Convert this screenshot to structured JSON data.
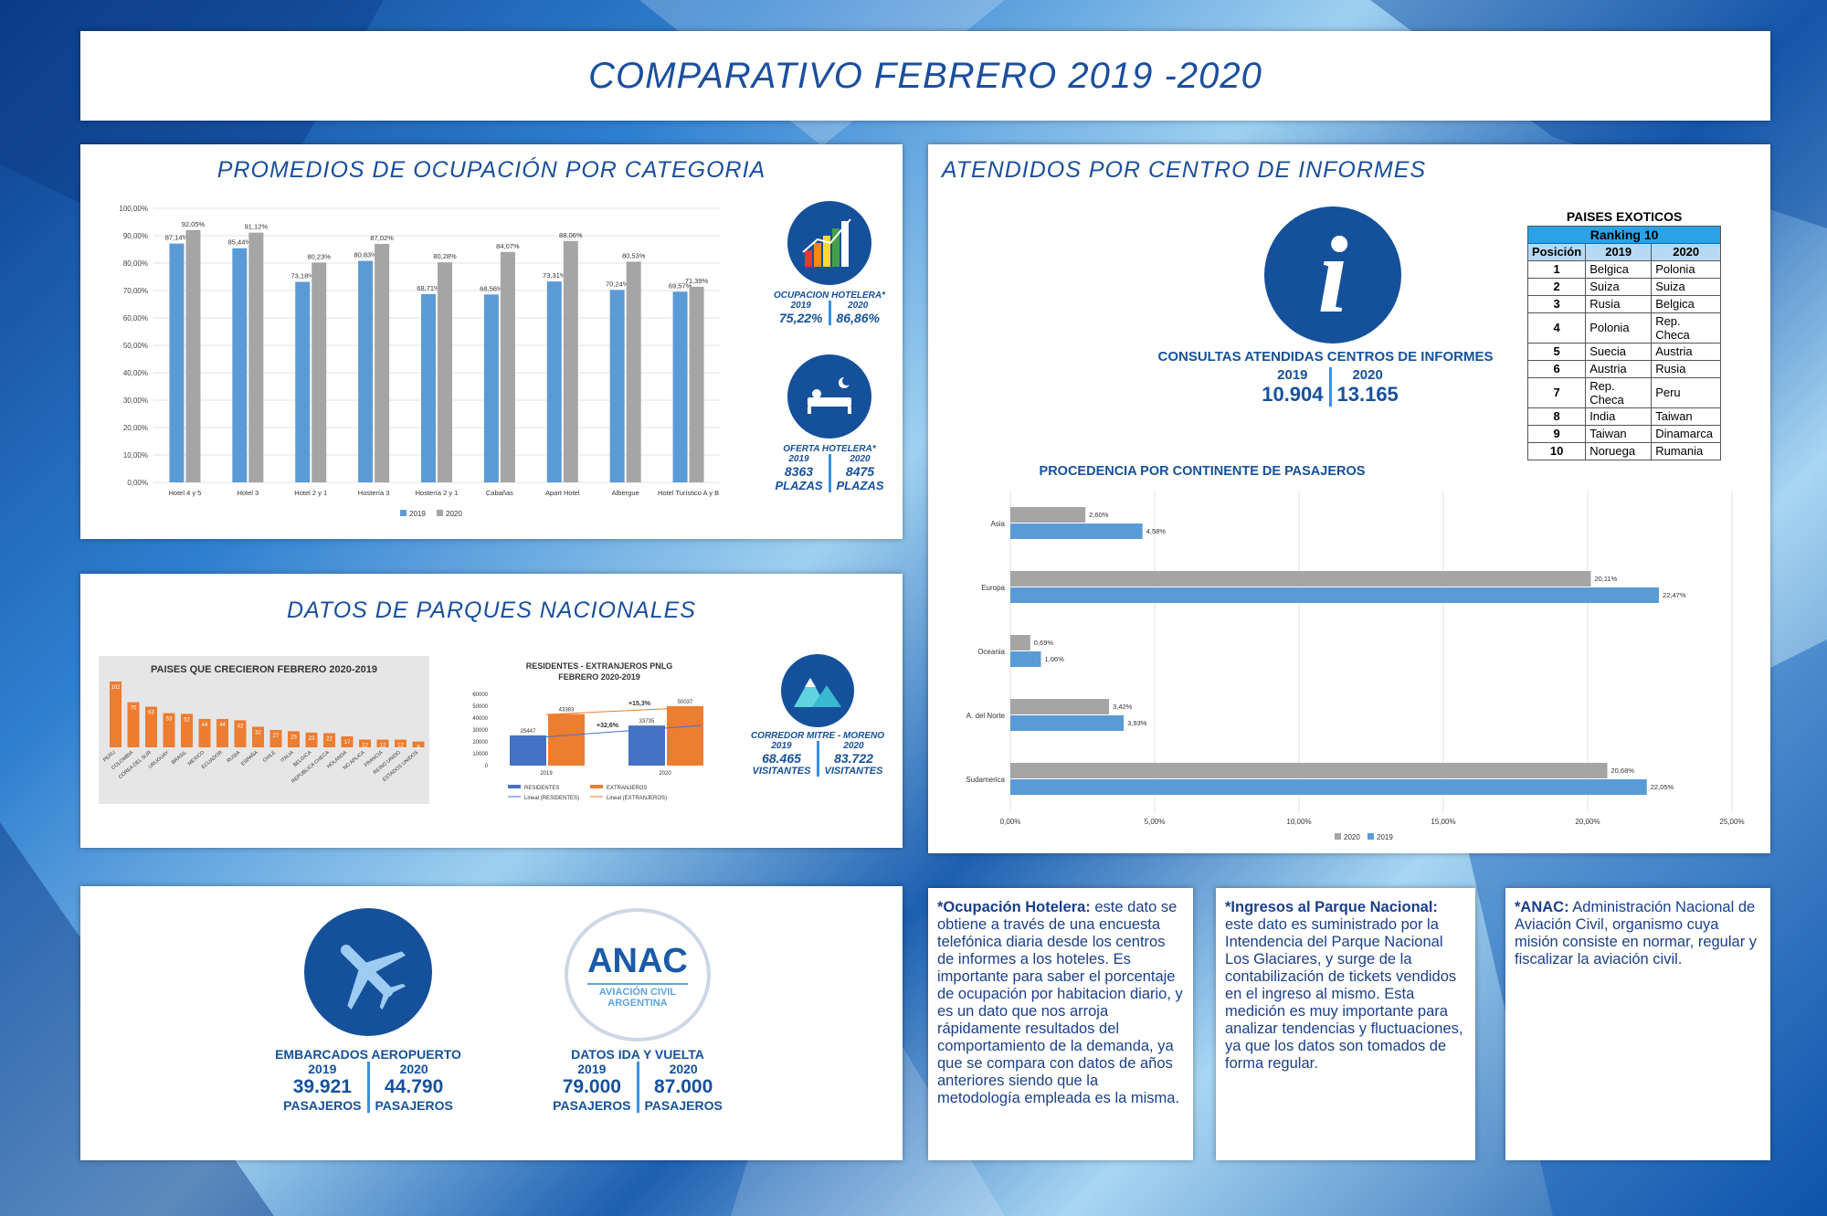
{
  "title": "COMPARATIVO FEBRERO 2019 -2020",
  "occupancy": {
    "heading": "PROMEDIOS DE OCUPACIÓN POR CATEGORIA",
    "hotel_label": "OCUPACION HOTELERA*",
    "hotel_y1": "2019",
    "hotel_y2": "2020",
    "hotel_v1": "75,22%",
    "hotel_v2": "86,86%",
    "offer_label": "OFERTA HOTELERA*",
    "offer_y1": "2019",
    "offer_y2": "2020",
    "offer_v1": "8363",
    "offer_v2": "8475",
    "offer_u1": "PLAZAS",
    "offer_u2": "PLAZAS"
  },
  "parks": {
    "heading": "DATOS DE PARQUES NACIONALES",
    "corridor_label": "CORREDOR MITRE - MORENO",
    "y1": "2019",
    "y2": "2020",
    "v1": "68.465",
    "v2": "83.722",
    "u1": "VISITANTES",
    "u2": "VISITANTES"
  },
  "transport": {
    "air_label": "EMBARCADOS AEROPUERTO",
    "air_y1": "2019",
    "air_y2": "2020",
    "air_v1": "39.921",
    "air_v2": "44.790",
    "air_u1": "PASAJEROS",
    "air_u2": "PASAJEROS",
    "anac_logo": "ANAC",
    "anac_sub1": "AVIACIÓN CIVIL",
    "anac_sub2": "ARGENTINA",
    "trip_label": "DATOS IDA Y VUELTA",
    "trip_y1": "2019",
    "trip_y2": "2020",
    "trip_v1": "79.000",
    "trip_v2": "87.000",
    "trip_u1": "PASAJEROS",
    "trip_u2": "PASAJEROS"
  },
  "info": {
    "heading": "ATENDIDOS POR CENTRO DE INFORMES",
    "consult_label": "CONSULTAS ATENDIDAS CENTROS DE INFORMES",
    "y1": "2019",
    "y2": "2020",
    "v1": "10.904",
    "v2": "13.165",
    "continent_heading": "PROCEDENCIA POR CONTINENTE DE  PASAJEROS"
  },
  "ranking": {
    "title": "PAISES EXOTICOS",
    "subtitle": "Ranking 10",
    "headers": [
      "Posición",
      "2019",
      "2020"
    ],
    "rows": [
      [
        "1",
        "Belgica",
        "Polonia"
      ],
      [
        "2",
        "Suiza",
        "Suiza"
      ],
      [
        "3",
        "Rusia",
        "Belgica"
      ],
      [
        "4",
        "Polonia",
        "Rep. Checa"
      ],
      [
        "5",
        "Suecia",
        "Austria"
      ],
      [
        "6",
        "Austria",
        "Rusia"
      ],
      [
        "7",
        "Rep. Checa",
        "Peru"
      ],
      [
        "8",
        "India",
        "Taiwan"
      ],
      [
        "9",
        "Taiwan",
        "Dinamarca"
      ],
      [
        "10",
        "Noruega",
        "Rumania"
      ]
    ]
  },
  "notes": {
    "n1_bold": "*Ocupación Hotelera:",
    "n1_text": " este dato se obtiene a través de una encuesta telefónica diaria desde los centros de informes a los hoteles. Es importante para saber el porcentaje de ocupación por habitacion diario, y es un dato que nos arroja rápidamente resultados del comportamiento de la demanda, ya que se compara con datos de años anteriores siendo que la metodología empleada es la misma.",
    "n2_bold": "*Ingresos al Parque Nacional:",
    "n2_text": " este dato es suministrado por la Intendencia del Parque Nacional Los Glaciares, y surge de la contabilización de tickets vendidos en el ingreso al mismo. Esta medición es muy importante para analizar tendencias y fluctuaciones, ya que los datos son tomados de forma regular.",
    "n3_bold": "*ANAC:",
    "n3_text": " Administración Nacional de Aviación Civil, organismo cuya misión consiste en normar, regular y fiscalizar la aviación civil."
  },
  "chart_data": [
    {
      "type": "bar",
      "categories": [
        "Hotel 4 y 5",
        "Hotel 3",
        "Hotel 2 y 1",
        "Hostería 3",
        "Hostería 2 y 1",
        "Cabañas",
        "Apart Hotel",
        "Albergue",
        "Hotel Turístico A y B"
      ],
      "series": [
        {
          "name": "2019",
          "values": [
            87.14,
            85.44,
            73.18,
            80.83,
            68.71,
            68.56,
            73.31,
            70.24,
            69.57
          ],
          "labels": [
            "87,14%",
            "85,44%",
            "73,18%",
            "80,83%",
            "68,71%",
            "68,56%",
            "73,31%",
            "70,24%",
            "69,57%"
          ]
        },
        {
          "name": "2020",
          "values": [
            92.05,
            91.12,
            80.23,
            87.02,
            80.28,
            84.07,
            88.06,
            80.53,
            71.39
          ],
          "labels": [
            "92,05%",
            "91,12%",
            "80,23%",
            "87,02%",
            "80,28%",
            "84,07%",
            "88,06%",
            "80,53%",
            "71,39%"
          ]
        }
      ],
      "yticks": [
        "0,00%",
        "10,00%",
        "20,00%",
        "30,00%",
        "40,00%",
        "50,00%",
        "60,00%",
        "70,00%",
        "80,00%",
        "90,00%",
        "100,00%"
      ],
      "ylim": [
        0,
        100
      ],
      "colors": {
        "2019": "#5b9bd5",
        "2020": "#a5a5a5"
      },
      "legend": "bottom"
    },
    {
      "type": "bar",
      "title": "PAISES QUE CRECIERON FEBRERO  2020-2019",
      "categories": [
        "PERU",
        "COLOMBIA",
        "COREA DEL SUR",
        "URUGUAY",
        "BRASIL",
        "MEXICO",
        "ECUADOR",
        "RUSIA",
        "ESPAÑA",
        "CHILE",
        "ITALIA",
        "BELGICA",
        "REPUBLICA CHECA",
        "HOLANDA",
        "NO APLICA",
        "FRANCIA",
        "REINO UNIDO",
        "ESTADOS UNIDOS"
      ],
      "values": [
        102,
        70,
        63,
        53,
        52,
        44,
        44,
        42,
        32,
        27,
        25,
        23,
        22,
        17,
        12,
        12,
        12,
        9
      ],
      "color": "#ed7d31"
    },
    {
      "type": "bar",
      "title": "RESIDENTES - EXTRANJEROS PNLG FEBRERO 2020-2019",
      "categories": [
        "2019",
        "2020"
      ],
      "series": [
        {
          "name": "RESIDENTES",
          "values": [
            25447,
            33735
          ]
        },
        {
          "name": "EXTRANJEROS",
          "values": [
            43383,
            50037
          ]
        }
      ],
      "trend_legend": [
        "Lineal (RESIDENTES)",
        "Lineal (EXTRANJEROS)"
      ],
      "annotations": [
        "+15,3%",
        "+32,6%"
      ],
      "yticks": [
        "0",
        "10000",
        "20000",
        "30000",
        "40000",
        "50000",
        "60000"
      ],
      "ylim": [
        0,
        60000
      ]
    },
    {
      "type": "bar",
      "orientation": "horizontal",
      "title": "PROCEDENCIA POR CONTINENTE DE  PASAJEROS",
      "categories": [
        "Asia",
        "Europa",
        "Oceania",
        "A. del Norte",
        "Sudamerica"
      ],
      "series": [
        {
          "name": "2020",
          "values": [
            2.6,
            20.11,
            0.69,
            3.42,
            20.68
          ],
          "labels": [
            "2,60%",
            "20,11%",
            "0,69%",
            "3,42%",
            "20,68%"
          ]
        },
        {
          "name": "2019",
          "values": [
            4.58,
            22.47,
            1.06,
            3.93,
            22.05
          ],
          "labels": [
            "4,58%",
            "22,47%",
            "1,06%",
            "3,93%",
            "22,05%"
          ]
        }
      ],
      "xticks": [
        "0,00%",
        "5,00%",
        "10,00%",
        "15,00%",
        "20,00%",
        "25,00%"
      ],
      "xlim": [
        0,
        25
      ],
      "colors": {
        "2020": "#a5a5a5",
        "2019": "#5b9bd5"
      },
      "legend": "bottom"
    }
  ]
}
